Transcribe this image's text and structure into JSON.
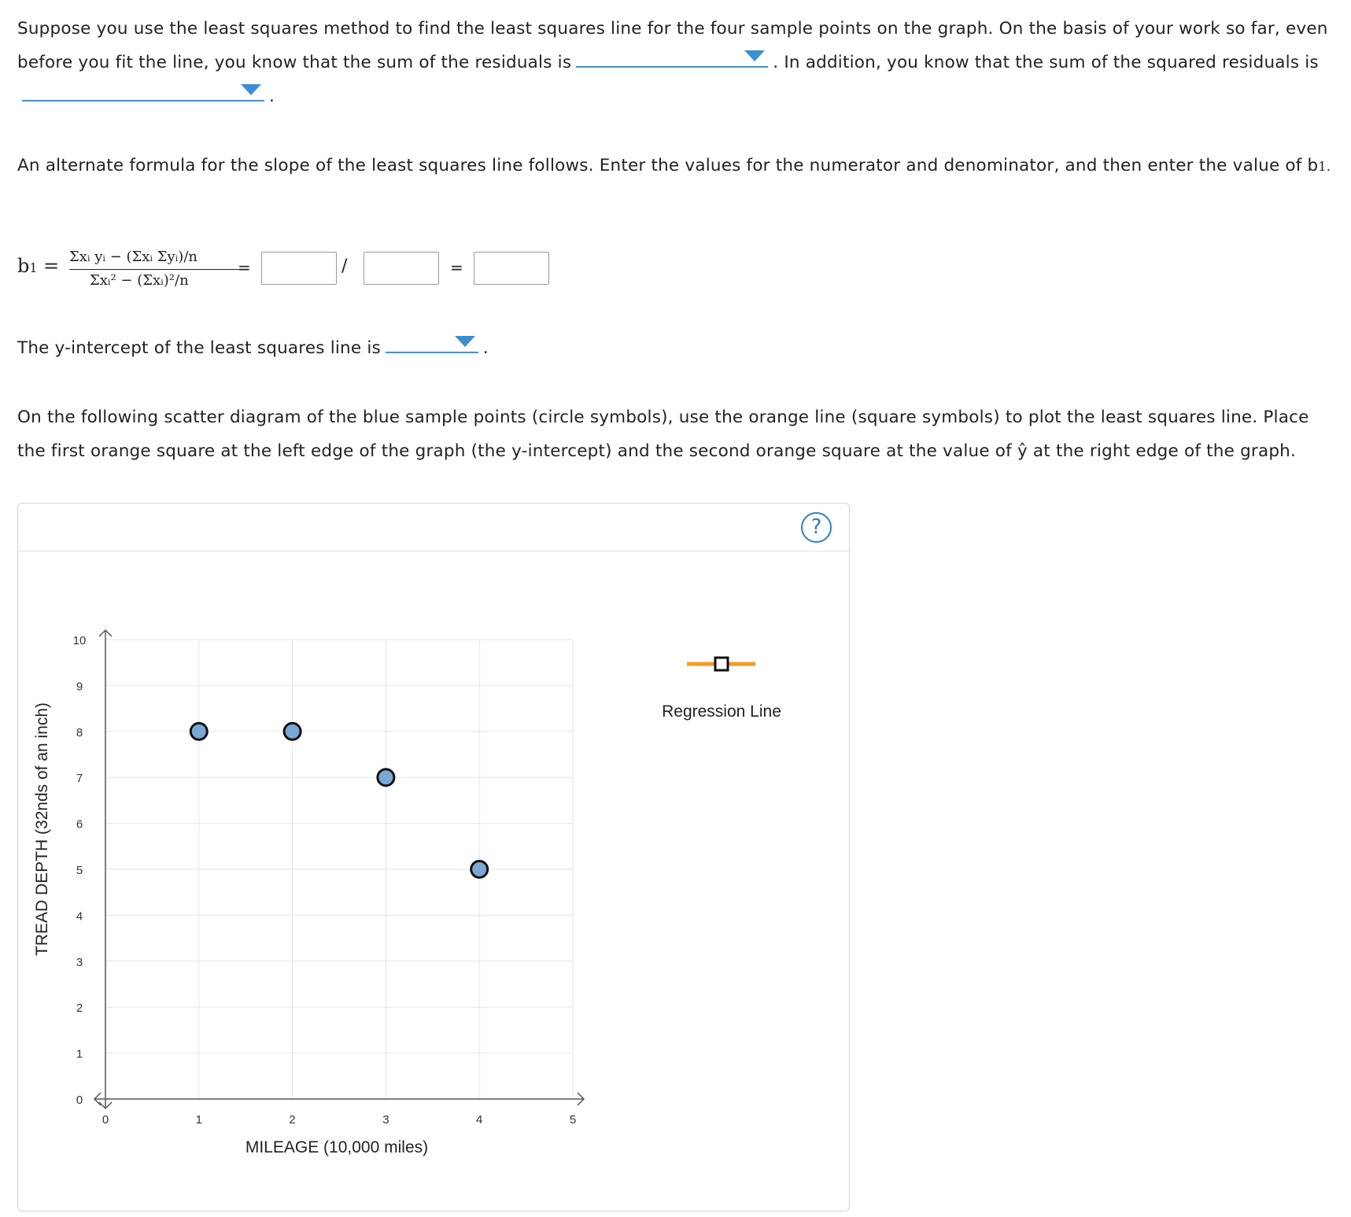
{
  "question": {
    "p1_a": "Suppose you use the least squares method to find the least squares line for the four sample points on the graph. On the basis of your work so far, even before you fit the line, you know that the sum of the residuals is",
    "p1_b": ". In addition, you know that the sum of the squared residuals is",
    "p1_c": ".",
    "p2": "An alternate formula for the slope of the least squares line follows. Enter the values for the numerator and denominator, and then enter the value of b",
    "p2_sub": "1",
    "p2_end": ".",
    "p3_a": "The y-intercept of the least squares line is",
    "p3_b": ".",
    "p4": "On the following scatter diagram of the blue sample points (circle symbols), use the orange line (square symbols) to plot the least squares line. Place the first orange square at the left edge of the graph (the y-intercept) and the second orange square at the value of ŷ at the right edge of the graph."
  },
  "formula": {
    "lhs": "b",
    "lhs_sub": "1",
    "eq": "=",
    "numerator": "Σxᵢ yᵢ − (Σxᵢ Σyᵢ)/n",
    "denominator": "Σxᵢ² − (Σxᵢ)²/n",
    "eq2": "=",
    "slash": "/",
    "eq3": "=",
    "numerator_value": "",
    "denominator_value": "",
    "b1_value": ""
  },
  "dropdowns": {
    "sum_residuals": "",
    "sum_squared_residuals": "",
    "y_intercept": ""
  },
  "help_icon_label": "?",
  "colors": {
    "point_fill": "#79a8d6",
    "regression_line": "#f59a23",
    "dropdown_arrow": "#3b8fd0",
    "help": "#2f7fc1"
  },
  "chart_data": {
    "type": "scatter",
    "xlabel": "MILEAGE (10,000 miles)",
    "ylabel": "TREAD DEPTH (32nds of an inch)",
    "xlim": [
      0,
      5
    ],
    "ylim": [
      0,
      10
    ],
    "xticks": [
      0,
      1,
      2,
      3,
      4,
      5
    ],
    "yticks": [
      0,
      1,
      2,
      3,
      4,
      5,
      6,
      7,
      8,
      9,
      10
    ],
    "grid": true,
    "series": [
      {
        "points": [
          [
            1,
            8
          ],
          [
            2,
            8
          ],
          [
            3,
            7
          ],
          [
            4,
            5
          ]
        ]
      }
    ],
    "legend": {
      "label": "Regression Line",
      "placement": "right"
    }
  }
}
